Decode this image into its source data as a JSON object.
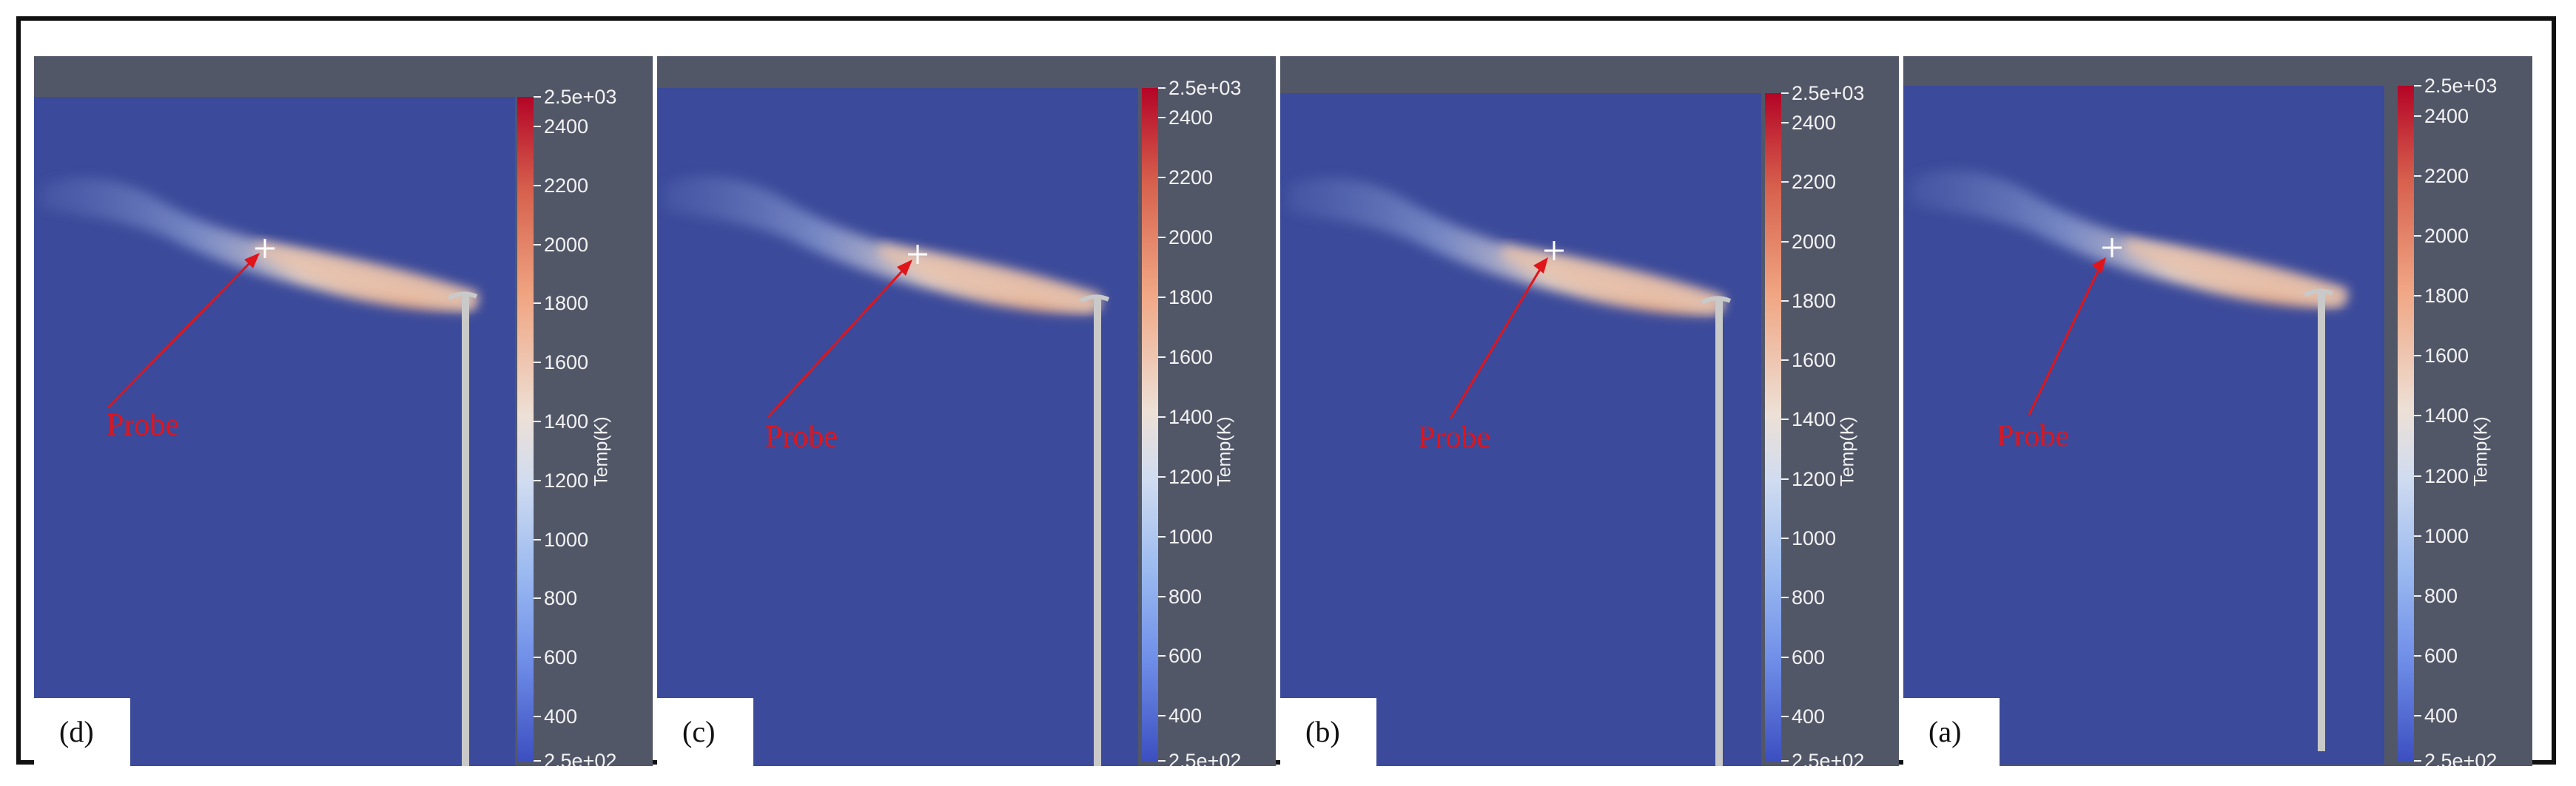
{
  "panels": [
    {
      "label": "(d)",
      "probe_label": "Probe"
    },
    {
      "label": "(c)",
      "probe_label": "Probe"
    },
    {
      "label": "(b)",
      "probe_label": "Probe"
    },
    {
      "label": "(a)",
      "probe_label": "Probe"
    }
  ],
  "colorbar": {
    "title": "Temp(K)",
    "max_label": "2.5e+03",
    "min_label": "2.5e+02",
    "ticks": [
      "2400",
      "2200",
      "2000",
      "1800",
      "1600",
      "1400",
      "1200",
      "1000",
      "800",
      "600",
      "400"
    ]
  },
  "colors": {
    "background": "#525768",
    "field": "#3b4a9a",
    "colormap_high": "#b40426",
    "colormap_mid": "#ede0d6",
    "colormap_low": "#3c4fc0",
    "probe_annotation": "#e0151b"
  }
}
